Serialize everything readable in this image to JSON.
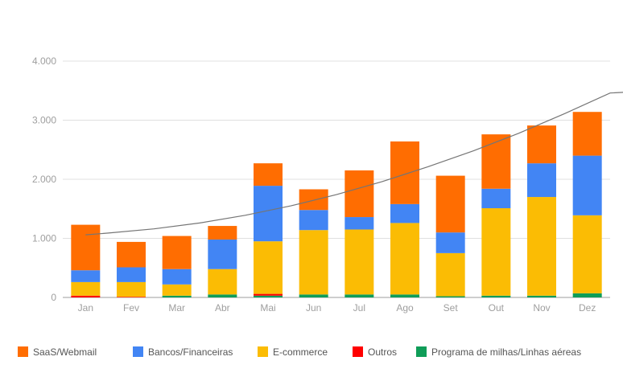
{
  "chart_data": {
    "type": "bar",
    "stacked": true,
    "categories": [
      "Jan",
      "Fev",
      "Mar",
      "Abr",
      "Mai",
      "Jun",
      "Jul",
      "Ago",
      "Set",
      "Out",
      "Nov",
      "Dez"
    ],
    "ylim": [
      0,
      4000
    ],
    "yticks": [
      0,
      1000,
      2000,
      3000,
      4000
    ],
    "ytick_labels": [
      "0",
      "1.000",
      "2.000",
      "3.000",
      "4.000"
    ],
    "grid": true,
    "legend_position": "bottom",
    "series": [
      {
        "name": "Programa de milhas/Linhas aéreas",
        "color": "#0f9d58",
        "values": [
          0,
          0,
          30,
          50,
          30,
          50,
          50,
          50,
          20,
          30,
          30,
          70
        ]
      },
      {
        "name": "Outros",
        "color": "#ff0000",
        "values": [
          30,
          10,
          0,
          0,
          30,
          0,
          0,
          0,
          0,
          0,
          0,
          0
        ]
      },
      {
        "name": "E-commerce",
        "color": "#fbbc04",
        "values": [
          230,
          250,
          190,
          430,
          890,
          1090,
          1100,
          1210,
          730,
          1480,
          1670,
          1320
        ]
      },
      {
        "name": "Bancos/Financeiras",
        "color": "#4285f4",
        "values": [
          200,
          250,
          260,
          500,
          940,
          340,
          210,
          320,
          350,
          330,
          570,
          1010
        ]
      },
      {
        "name": "SaaS/Webmail",
        "color": "#ff6d01",
        "values": [
          770,
          430,
          560,
          230,
          380,
          350,
          790,
          1060,
          960,
          920,
          640,
          740
        ]
      }
    ],
    "trendline": {
      "type": "polynomial",
      "color": "#757575",
      "x": [
        0.5,
        1,
        2,
        3,
        4,
        5,
        6,
        7,
        8,
        9,
        10,
        11,
        12,
        12.5
      ],
      "y": [
        1060,
        1090,
        1160,
        1260,
        1390,
        1550,
        1740,
        1960,
        2210,
        2480,
        2780,
        3110,
        3460,
        3480
      ]
    },
    "legend_order": [
      "SaaS/Webmail",
      "Bancos/Financeiras",
      "E-commerce",
      "Outros",
      "Programa de milhas/Linhas aéreas"
    ]
  }
}
